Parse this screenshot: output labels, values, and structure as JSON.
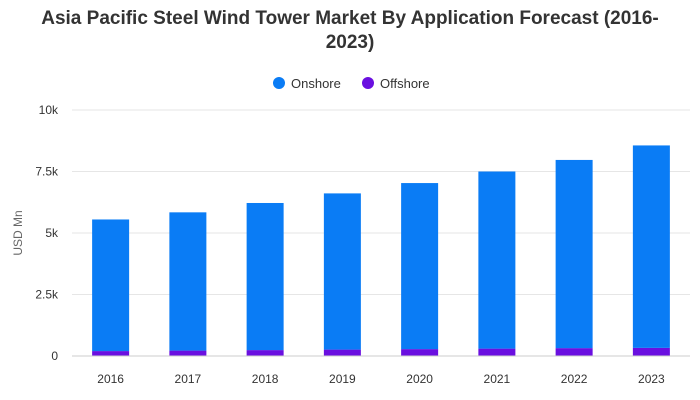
{
  "chart_data": {
    "type": "bar",
    "stacked": true,
    "title_lines": [
      "Asia Pacific Steel Wind Tower Market By Application Forecast (2016-",
      "2023)"
    ],
    "ylabel": "USD Mn",
    "xlabel": "",
    "categories": [
      "2016",
      "2017",
      "2018",
      "2019",
      "2020",
      "2021",
      "2022",
      "2023"
    ],
    "series": [
      {
        "name": "Onshore",
        "color": "#0a7cf5",
        "values": [
          5350,
          5620,
          5980,
          6350,
          6750,
          7200,
          7650,
          8230
        ]
      },
      {
        "name": "Offshore",
        "color": "#6a0fe0",
        "values": [
          200,
          220,
          240,
          260,
          280,
          300,
          320,
          330
        ]
      }
    ],
    "ylim": [
      0,
      10000
    ],
    "yticks": [
      0,
      2500,
      5000,
      7500,
      10000
    ],
    "ytick_labels": [
      "0",
      "2.5k",
      "5k",
      "7.5k",
      "10k"
    ],
    "grid": true,
    "legend_position": "top-center"
  }
}
